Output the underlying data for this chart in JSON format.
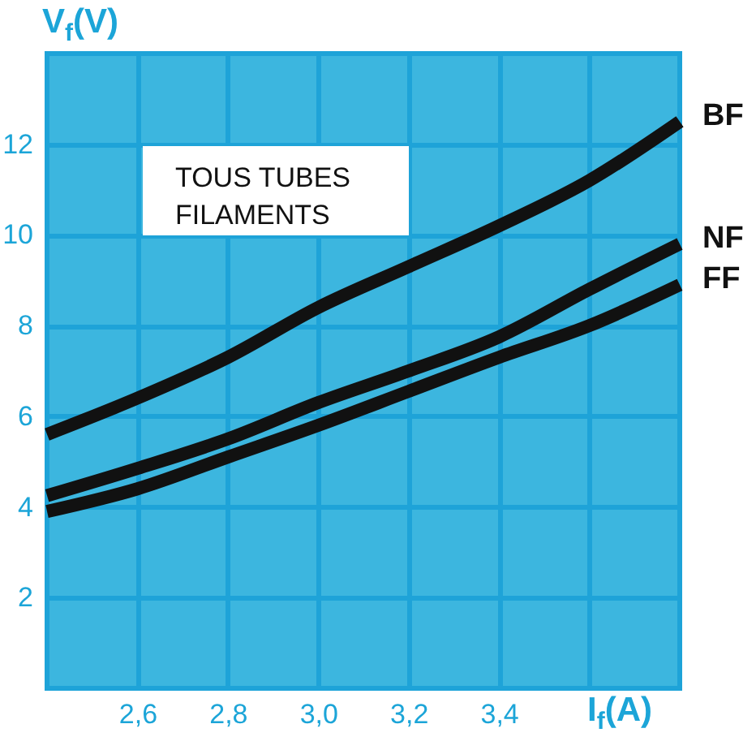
{
  "chart_data": {
    "type": "line",
    "xlabel": "I$_{f}$(A)",
    "ylabel": "V$_{f}$(V)",
    "annotations": [
      "TOUS TUBES FILAMENTS"
    ],
    "x": [
      2.4,
      2.6,
      2.8,
      3.0,
      3.2,
      3.4,
      3.6,
      3.8
    ],
    "series": [
      {
        "name": "BF",
        "color": "#111111",
        "values": [
          5.6,
          6.4,
          7.3,
          8.4,
          9.3,
          10.2,
          11.2,
          12.5
        ]
      },
      {
        "name": "NF",
        "color": "#111111",
        "values": [
          4.25,
          4.85,
          5.5,
          6.3,
          7.0,
          7.75,
          8.8,
          9.8
        ]
      },
      {
        "name": "FF",
        "color": "#111111",
        "values": [
          3.9,
          4.4,
          5.1,
          5.8,
          6.55,
          7.3,
          8.0,
          8.9
        ]
      }
    ],
    "xlim": [
      2.4,
      3.8
    ],
    "ylim": [
      0,
      14
    ],
    "xticks": [
      {
        "value": 2.6,
        "label": "2,6"
      },
      {
        "value": 2.8,
        "label": "2,8"
      },
      {
        "value": 3.0,
        "label": "3,0"
      },
      {
        "value": 3.2,
        "label": "3,2"
      },
      {
        "value": 3.4,
        "label": "3,4"
      },
      {
        "value": 3.6,
        "label": null
      }
    ],
    "yticks": [
      2,
      4,
      6,
      8,
      10,
      12
    ],
    "grid": true,
    "line_style": "solid"
  }
}
